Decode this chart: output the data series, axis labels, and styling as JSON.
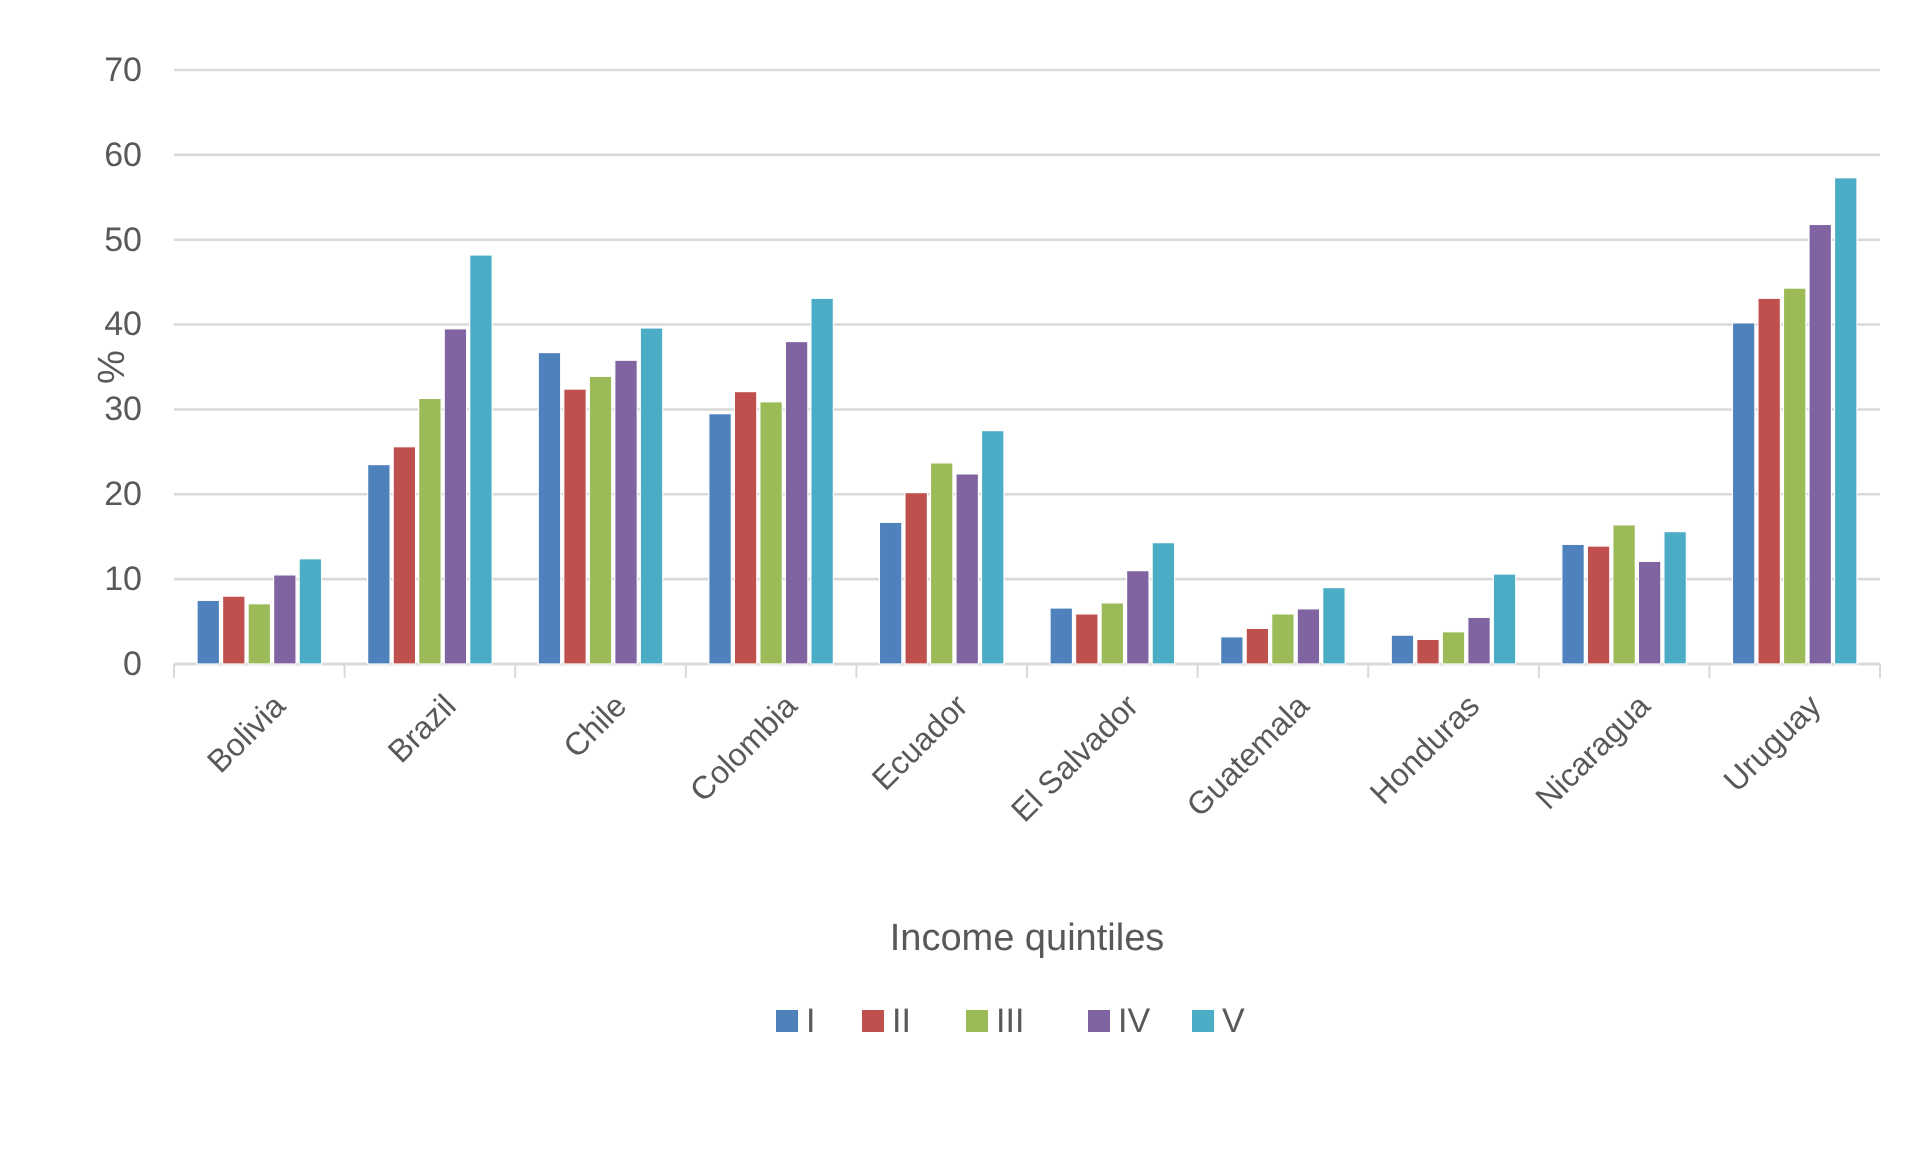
{
  "chart_data": {
    "type": "bar",
    "xlabel": "Income quintiles",
    "ylabel": "%",
    "categories": [
      "Bolivia",
      "Brazil",
      "Chile",
      "Colombia",
      "Ecuador",
      "El Salvador",
      "Guatemala",
      "Honduras",
      "Nicaragua",
      "Uruguay"
    ],
    "series": [
      {
        "name": "I",
        "color": "#4f81bd",
        "values": [
          7.5,
          23.5,
          36.7,
          29.5,
          16.7,
          6.6,
          3.2,
          3.4,
          14.1,
          40.2
        ]
      },
      {
        "name": "II",
        "color": "#c0504d",
        "values": [
          8.0,
          25.6,
          32.4,
          32.1,
          20.2,
          5.9,
          4.2,
          2.9,
          13.9,
          43.1
        ]
      },
      {
        "name": "III",
        "color": "#9bbb59",
        "values": [
          7.1,
          31.3,
          33.9,
          30.9,
          23.7,
          7.2,
          5.9,
          3.8,
          16.4,
          44.3
        ]
      },
      {
        "name": "IV",
        "color": "#8064a2",
        "values": [
          10.5,
          39.5,
          35.8,
          38.0,
          22.4,
          11.0,
          6.5,
          5.5,
          12.1,
          51.8
        ]
      },
      {
        "name": "V",
        "color": "#4bacc6",
        "values": [
          12.4,
          48.2,
          39.6,
          43.1,
          27.5,
          14.3,
          9.0,
          10.6,
          15.6,
          57.3
        ]
      }
    ],
    "ylim": [
      0,
      70
    ],
    "yticks": [
      0,
      10,
      20,
      30,
      40,
      50,
      60,
      70
    ],
    "grid": "y",
    "legend": "bottom"
  }
}
